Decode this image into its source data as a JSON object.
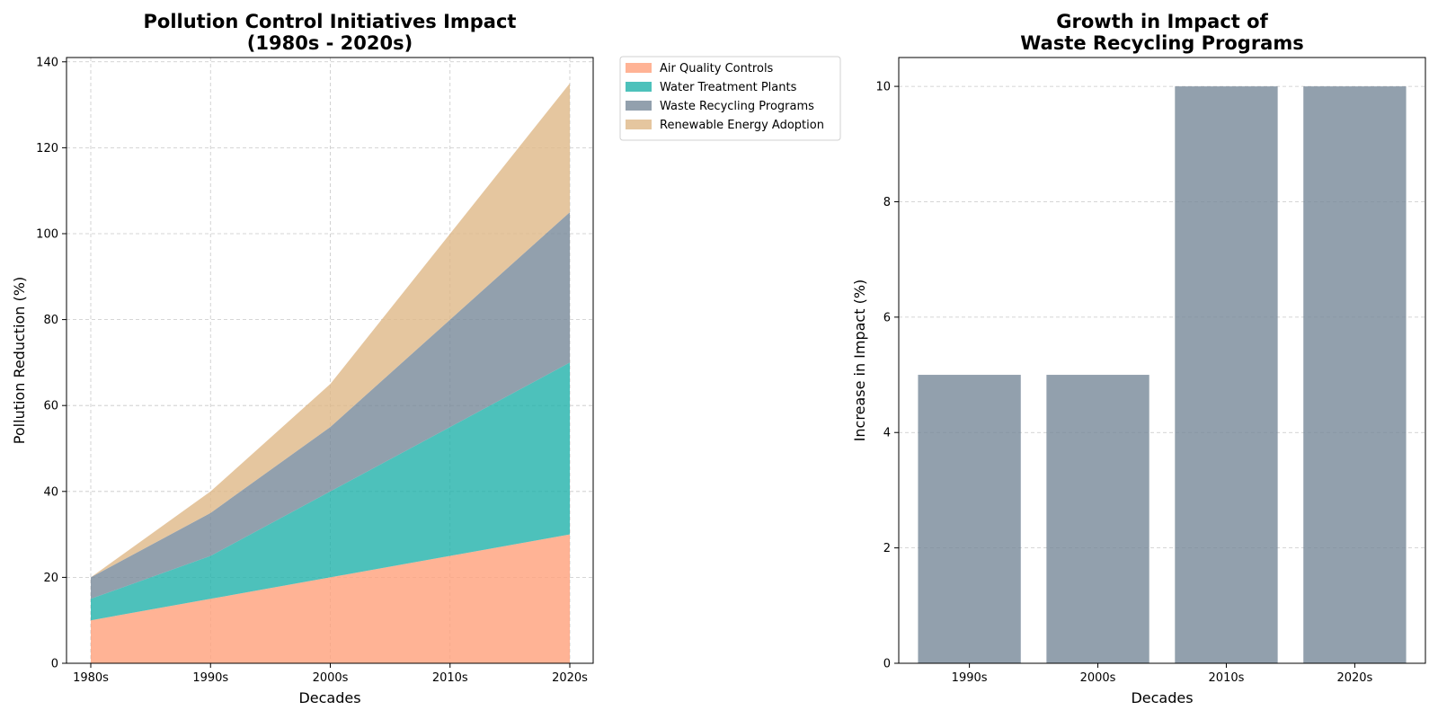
{
  "chart_data": [
    {
      "type": "area",
      "stacked": true,
      "title": "Pollution Control Initiatives Impact\n(1980s - 2020s)",
      "xlabel": "Decades",
      "ylabel": "Pollution Reduction (%)",
      "categories": [
        "1980s",
        "1990s",
        "2000s",
        "2010s",
        "2020s"
      ],
      "ylim": [
        0,
        141
      ],
      "yticks": [
        0,
        20,
        40,
        60,
        80,
        100,
        120,
        140
      ],
      "grid": true,
      "legend_position": "outside-top-right",
      "series": [
        {
          "name": "Air Quality Controls",
          "values": [
            10,
            15,
            20,
            25,
            30
          ],
          "color": "#FFA07A"
        },
        {
          "name": "Water Treatment Plants",
          "values": [
            5,
            10,
            20,
            30,
            40
          ],
          "color": "#20B2AA"
        },
        {
          "name": "Waste Recycling Programs",
          "values": [
            5,
            10,
            15,
            25,
            35
          ],
          "color": "#778899"
        },
        {
          "name": "Renewable Energy Adoption",
          "values": [
            0,
            5,
            10,
            20,
            30
          ],
          "color": "#DEB887"
        }
      ]
    },
    {
      "type": "bar",
      "title": "Growth in Impact of\nWaste Recycling Programs",
      "xlabel": "Decades",
      "ylabel": "Increase in Impact (%)",
      "categories": [
        "1990s",
        "2000s",
        "2010s",
        "2020s"
      ],
      "values": [
        5,
        5,
        10,
        10
      ],
      "color": "#778899",
      "ylim": [
        0,
        10.5
      ],
      "yticks": [
        0,
        2,
        4,
        6,
        8,
        10
      ],
      "grid": true
    }
  ]
}
